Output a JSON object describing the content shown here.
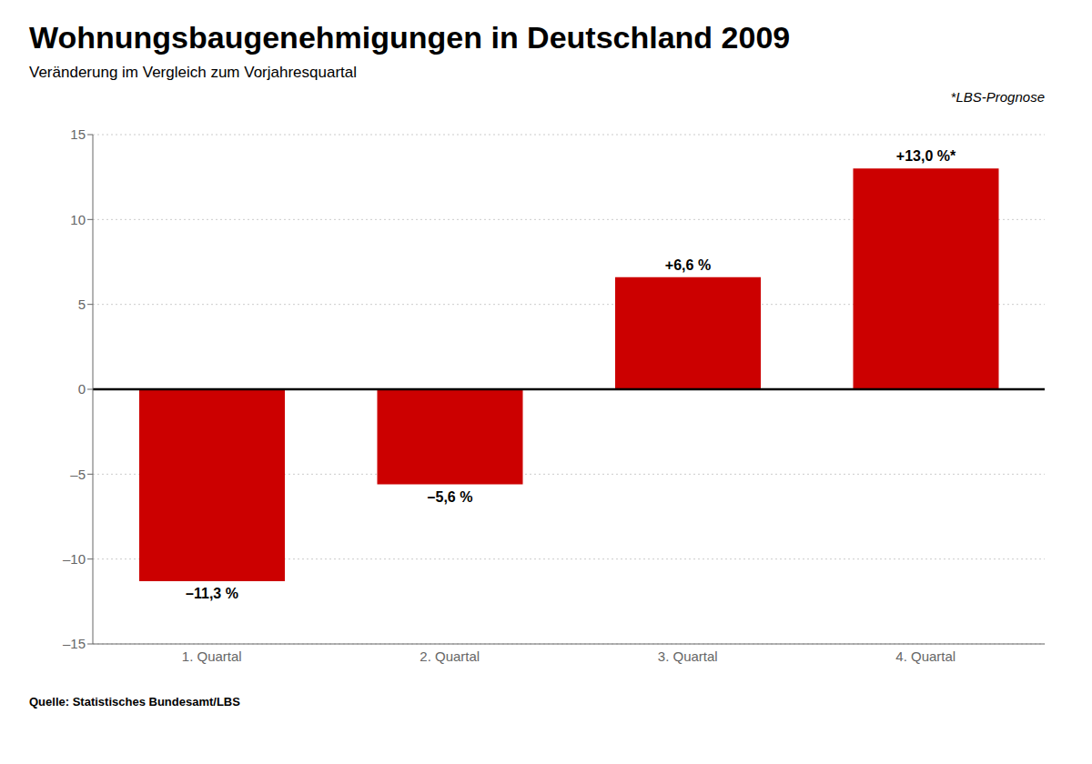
{
  "chart_data": {
    "type": "bar",
    "title": "Wohnungsbaugenehmigungen in Deutschland 2009",
    "subtitle": "Veränderung im Vergleich zum Vorjahresquartal",
    "annotations": [
      "*LBS-Prognose",
      "Quelle: Statistisches Bundesamt/LBS"
    ],
    "categories": [
      "1. Quartal",
      "2. Quartal",
      "3. Quartal",
      "4. Quartal"
    ],
    "values": [
      -11.3,
      -5.6,
      6.6,
      13.0
    ],
    "value_labels": [
      "–11,3 %",
      "–5,6 %",
      "+6,6 %",
      "+13,0 %*"
    ],
    "color": "#cc0000",
    "ylim": [
      -15,
      15
    ],
    "yticks": [
      {
        "value": -15,
        "label": "–15"
      },
      {
        "value": -10,
        "label": "–10"
      },
      {
        "value": -5,
        "label": "–5"
      },
      0,
      5,
      10,
      15
    ],
    "grid": true,
    "data_labels": true
  }
}
